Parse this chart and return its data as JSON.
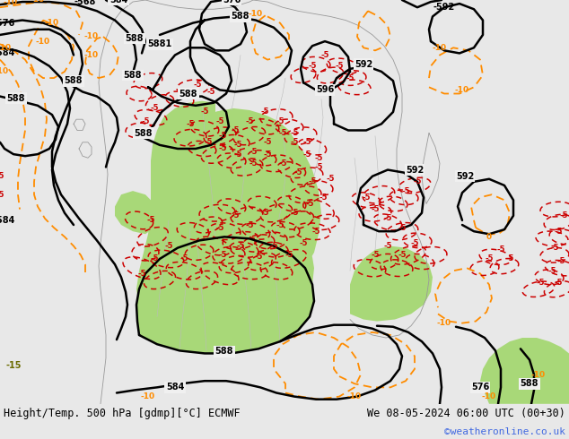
{
  "title_left": "Height/Temp. 500 hPa [gdmp][°C] ECMWF",
  "title_right": "We 08-05-2024 06:00 UTC (00+30)",
  "credit": "©weatheronline.co.uk",
  "background_color": "#e8e8e8",
  "map_bg_color": "#f0f0f0",
  "green_fill_color": "#a8d878",
  "contour_color_black": "#000000",
  "contour_color_orange": "#ff8c00",
  "contour_color_red": "#cc0000",
  "contour_color_olive": "#6b6b00",
  "bottom_bar_color": "#cccccc",
  "credit_color": "#4169e1",
  "title_fontsize": 8.5,
  "credit_fontsize": 8,
  "label_fontsize": 7
}
